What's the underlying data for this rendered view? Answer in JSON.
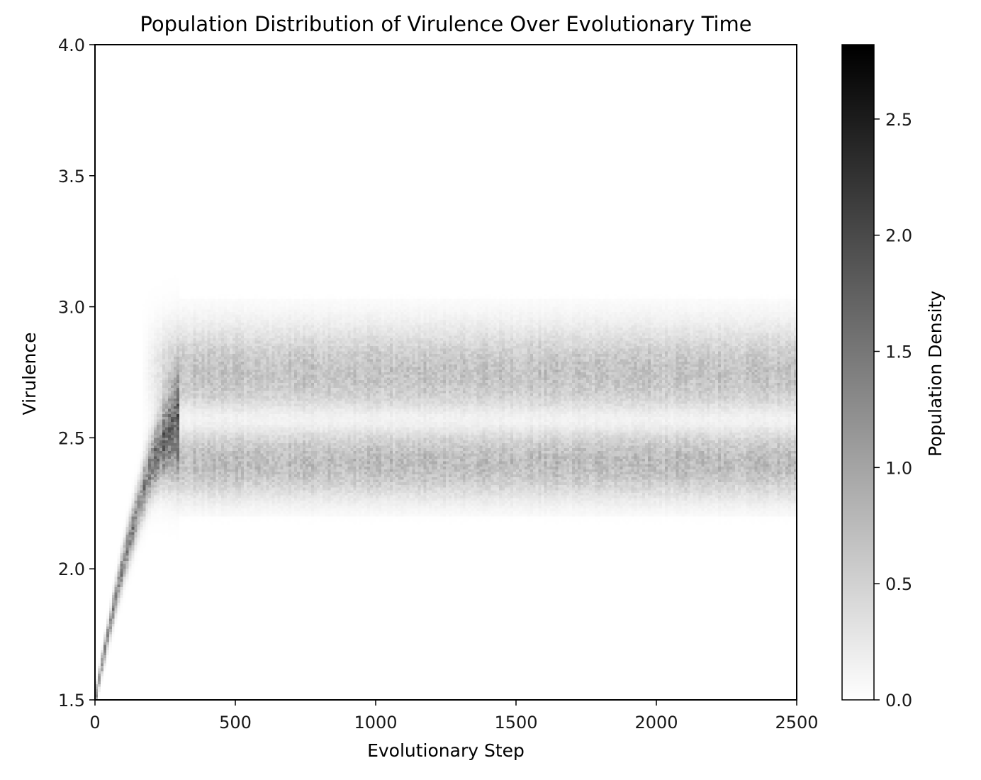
{
  "chart_data": {
    "type": "heatmap",
    "title": "Population Distribution of Virulence Over Evolutionary Time",
    "xlabel": "Evolutionary Step",
    "ylabel": "Virulence",
    "colorbar_label": "Population Density",
    "colormap": "Greys",
    "xlim": [
      0,
      2500
    ],
    "ylim": [
      1.5,
      4.0
    ],
    "clim": [
      0.0,
      2.82
    ],
    "x_ticks": [
      0,
      500,
      1000,
      1500,
      2000,
      2500
    ],
    "x_tick_labels": [
      "0",
      "500",
      "1000",
      "1500",
      "2000",
      "2500"
    ],
    "y_ticks": [
      1.5,
      2.0,
      2.5,
      3.0,
      3.5,
      4.0
    ],
    "y_tick_labels": [
      "1.5",
      "2.0",
      "2.5",
      "3.0",
      "3.5",
      "4.0"
    ],
    "colorbar_ticks": [
      0.0,
      0.5,
      1.0,
      1.5,
      2.0,
      2.5
    ],
    "colorbar_tick_labels": [
      "0.0",
      "0.5",
      "1.0",
      "1.5",
      "2.0",
      "2.5"
    ],
    "grid": false,
    "distribution": {
      "initial_virulence": 1.5,
      "transient_end_step": 300,
      "upper_branch": {
        "center": 2.75,
        "spread": 0.12,
        "peak_density": 0.65
      },
      "lower_branch": {
        "center": 2.4,
        "spread": 0.09,
        "peak_density": 0.72
      },
      "gap_center": 2.57,
      "upper_edge": 3.0,
      "lower_edge": 2.25
    }
  }
}
